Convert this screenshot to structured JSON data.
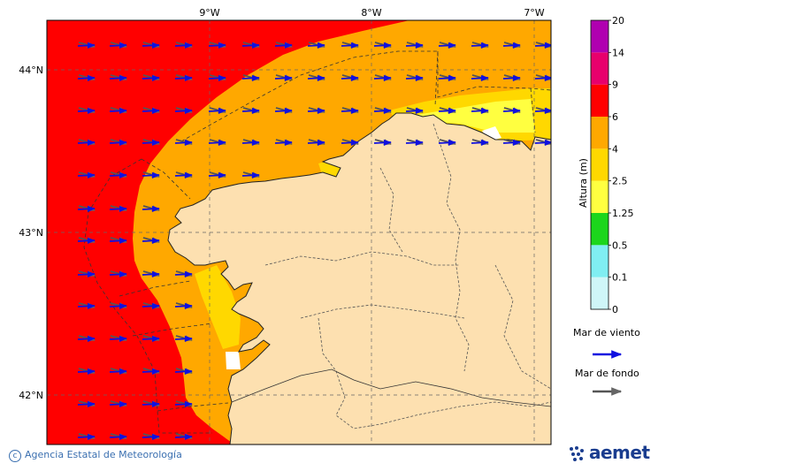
{
  "map": {
    "lon_labels": [
      "9°W",
      "8°W",
      "7°W"
    ],
    "lat_labels": [
      "44°N",
      "43°N",
      "42°N"
    ]
  },
  "legend": {
    "title": "Altura (m)",
    "levels": [
      "0",
      "0.1",
      "0.5",
      "1.25",
      "2.5",
      "4",
      "6",
      "9",
      "14",
      "20"
    ],
    "colors": [
      "#cff6f8",
      "#80eef2",
      "#1cd61c",
      "#ffff40",
      "#ffd800",
      "#ffa800",
      "#ff0000",
      "#e8006c",
      "#b000b0"
    ],
    "wind_sea_label": "Mar de viento",
    "swell_label": "Mar de fondo",
    "wind_sea_color": "#1010e0",
    "swell_color": "#555555"
  },
  "colors": {
    "land": "#fde0b0",
    "red": "#ff0000",
    "orange": "#ffa800",
    "yellow": "#ffd800",
    "light_yellow": "#ffff40"
  },
  "footer": {
    "credit": "Agencia Estatal de Meteorología",
    "brand": "aemet"
  }
}
